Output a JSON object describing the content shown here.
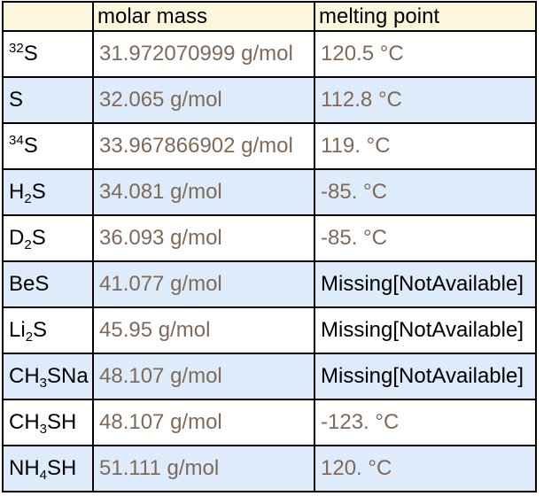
{
  "header": {
    "substance": "",
    "molar_mass": "molar mass",
    "melting_point": "melting point"
  },
  "colors": {
    "header_bg": "#fbf6dc",
    "shade_bg": "#ddebfa",
    "value_text": "#806a57",
    "border": "#000000"
  },
  "rows": [
    {
      "substance": [
        {
          "t": "32",
          "k": "sup"
        },
        {
          "t": "S",
          "k": "text"
        }
      ],
      "mass": "31.972070999 g/mol",
      "mp": "120.5 °C",
      "mp_missing": false
    },
    {
      "substance": [
        {
          "t": "S",
          "k": "text"
        }
      ],
      "mass": "32.065 g/mol",
      "mp": "112.8 °C",
      "mp_missing": false
    },
    {
      "substance": [
        {
          "t": "34",
          "k": "sup"
        },
        {
          "t": "S",
          "k": "text"
        }
      ],
      "mass": "33.967866902 g/mol",
      "mp": "119. °C",
      "mp_missing": false
    },
    {
      "substance": [
        {
          "t": "H",
          "k": "text"
        },
        {
          "t": "2",
          "k": "sub"
        },
        {
          "t": "S",
          "k": "text"
        }
      ],
      "mass": "34.081 g/mol",
      "mp": "-85. °C",
      "mp_missing": false
    },
    {
      "substance": [
        {
          "t": "D",
          "k": "text"
        },
        {
          "t": "2",
          "k": "sub"
        },
        {
          "t": "S",
          "k": "text"
        }
      ],
      "mass": "36.093 g/mol",
      "mp": "-85. °C",
      "mp_missing": false
    },
    {
      "substance": [
        {
          "t": "BeS",
          "k": "text"
        }
      ],
      "mass": "41.077 g/mol",
      "mp": "Missing[NotAvailable]",
      "mp_missing": true
    },
    {
      "substance": [
        {
          "t": "Li",
          "k": "text"
        },
        {
          "t": "2",
          "k": "sub"
        },
        {
          "t": "S",
          "k": "text"
        }
      ],
      "mass": "45.95 g/mol",
      "mp": "Missing[NotAvailable]",
      "mp_missing": true
    },
    {
      "substance": [
        {
          "t": "CH",
          "k": "text"
        },
        {
          "t": "3",
          "k": "sub"
        },
        {
          "t": "SNa",
          "k": "text"
        }
      ],
      "mass": "48.107 g/mol",
      "mp": "Missing[NotAvailable]",
      "mp_missing": true
    },
    {
      "substance": [
        {
          "t": "CH",
          "k": "text"
        },
        {
          "t": "3",
          "k": "sub"
        },
        {
          "t": "SH",
          "k": "text"
        }
      ],
      "mass": "48.107 g/mol",
      "mp": "-123. °C",
      "mp_missing": false
    },
    {
      "substance": [
        {
          "t": "NH",
          "k": "text"
        },
        {
          "t": "4",
          "k": "sub"
        },
        {
          "t": "SH",
          "k": "text"
        }
      ],
      "mass": "51.111 g/mol",
      "mp": "120. °C",
      "mp_missing": false
    }
  ]
}
